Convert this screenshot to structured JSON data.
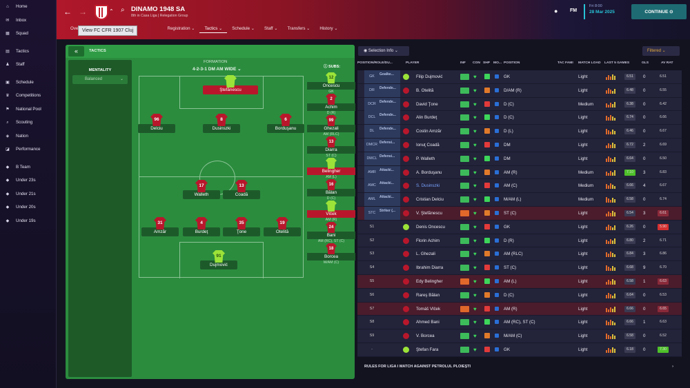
{
  "sidebar": {
    "items": [
      {
        "label": "Home",
        "icon": "home-icon"
      },
      {
        "label": "Inbox",
        "icon": "inbox-icon"
      },
      {
        "label": "Squad",
        "icon": "squad-icon"
      },
      {
        "label": "Tactics",
        "icon": "tactics-icon"
      },
      {
        "label": "Staff",
        "icon": "staff-icon"
      },
      {
        "label": "Schedule",
        "icon": "calendar-icon"
      },
      {
        "label": "Competitions",
        "icon": "trophy-icon"
      },
      {
        "label": "National Pool",
        "icon": "flag-icon"
      },
      {
        "label": "Scouting",
        "icon": "binoculars-icon"
      },
      {
        "label": "Nation",
        "icon": "nation-icon"
      },
      {
        "label": "Performance",
        "icon": "chart-icon"
      },
      {
        "label": "B Team",
        "icon": "team-icon"
      },
      {
        "label": "Under 23s",
        "icon": "team-icon"
      },
      {
        "label": "Under 21s",
        "icon": "team-icon"
      },
      {
        "label": "Under 20s",
        "icon": "team-icon"
      },
      {
        "label": "Under 19s",
        "icon": "team-icon"
      }
    ]
  },
  "header": {
    "club_name": "DINAMO 1948 SA",
    "club_sub": "8th in Casa Liga | Relegation Group",
    "tooltip": "View FC CFR 1907 Cluj",
    "tabs": [
      "Overv",
      "Registration",
      "Tactics",
      "Schedule",
      "Staff",
      "Transfers",
      "History"
    ],
    "time": "Fri 8:00",
    "date": "28 Mar 2025",
    "continue": "CONTINUE",
    "fm": "FM"
  },
  "tactics": {
    "title": "TACTICS",
    "mentality_label": "MENTALITY",
    "mentality_value": "Balanced",
    "formation_label": "FORMATION",
    "formation_value": "4-2-3-1 DM AM WIDE",
    "subs_label": "SUBS:",
    "players": [
      {
        "num": "",
        "name": "Ştefănescu",
        "red": true
      },
      {
        "num": "96",
        "name": "Delciu"
      },
      {
        "num": "8",
        "name": "Dusinszki"
      },
      {
        "num": "6",
        "name": "Borduşanu"
      },
      {
        "num": "17",
        "name": "Walleth"
      },
      {
        "num": "13",
        "name": "Coadă"
      },
      {
        "num": "31",
        "name": "Amzăr"
      },
      {
        "num": "4",
        "name": "Burdeţ"
      },
      {
        "num": "35",
        "name": "Ţone"
      },
      {
        "num": "19",
        "name": "Otelită"
      },
      {
        "num": "91",
        "name": "Dujmović"
      }
    ],
    "subs": [
      {
        "num": "12",
        "name": "Oncescu",
        "pos": "GK"
      },
      {
        "num": "2",
        "name": "Achim",
        "pos": "D (R)"
      },
      {
        "num": "99",
        "name": "Ghezali",
        "pos": "AM (RLC)"
      },
      {
        "num": "13",
        "name": "Diarra",
        "pos": "ST (C)"
      },
      {
        "num": "",
        "name": "Belingher",
        "pos": "AM (L)"
      },
      {
        "num": "16",
        "name": "Bălan",
        "pos": "D (C)"
      },
      {
        "num": "",
        "name": "Vlček",
        "pos": "AM (R)"
      },
      {
        "num": "24",
        "name": "Bani",
        "pos": "AM (RC), ST (C)"
      },
      {
        "num": "18",
        "name": "Borcea",
        "pos": "M/AM (C)"
      }
    ]
  },
  "table": {
    "selection_info": "Selection Info",
    "filtered": "Filtered",
    "headers": [
      "POSITION/ROLE/DU...",
      "PLAYER",
      "INF",
      "CON",
      "SHP",
      "MO...",
      "POSITION",
      "TAC FAMI",
      "MATCH LOAD",
      "LAST 5 GAMES",
      "GLS",
      "AV RAT"
    ],
    "rows": [
      {
        "pos": "GK",
        "role": "Goalke...",
        "name": "Filip Dujmović",
        "position": "GK",
        "load": "Light",
        "r5": "6.51",
        "gls": "0",
        "avr": "6.51"
      },
      {
        "pos": "DR",
        "role": "Defende...",
        "name": "B. Otelită",
        "position": "D/AM (R)",
        "load": "Light",
        "r5": "6.48",
        "gls": "0",
        "avr": "6.55"
      },
      {
        "pos": "DCR",
        "role": "Defende...",
        "name": "David Ţone",
        "position": "D (C)",
        "load": "Medium",
        "r5": "6.38",
        "gls": "0",
        "avr": "6.42"
      },
      {
        "pos": "DCL",
        "role": "Defende...",
        "name": "Alin Burdeţ",
        "position": "D (C)",
        "load": "Light",
        "r5": "6.74",
        "gls": "0",
        "avr": "6.66"
      },
      {
        "pos": "DL",
        "role": "Defende...",
        "name": "Costin Amzăr",
        "position": "D (L)",
        "load": "Light",
        "r5": "6.46",
        "gls": "0",
        "avr": "6.67"
      },
      {
        "pos": "DMCR",
        "role": "Defensi...",
        "name": "Ionuţ Coadă",
        "position": "DM",
        "load": "Light",
        "r5": "6.72",
        "gls": "2",
        "avr": "6.69"
      },
      {
        "pos": "DMCL",
        "role": "Defensi...",
        "name": "P. Walleth",
        "position": "DM",
        "load": "Light",
        "r5": "6.64",
        "gls": "0",
        "avr": "6.50"
      },
      {
        "pos": "AMR",
        "role": "Attacki...",
        "name": "A. Borduşanu",
        "position": "AM (R)",
        "load": "Medium",
        "r5": "7.10",
        "gls": "3",
        "avr": "6.83"
      },
      {
        "pos": "AMC",
        "role": "Attacki...",
        "name": "S. Dusinszki",
        "position": "AM (C)",
        "load": "Medium",
        "r5": "6.66",
        "gls": "4",
        "avr": "6.67"
      },
      {
        "pos": "AML",
        "role": "Attacki...",
        "name": "Cristian Delciu",
        "position": "M/AM (L)",
        "load": "Medium",
        "r5": "6.58",
        "gls": "0",
        "avr": "6.74"
      },
      {
        "pos": "STC",
        "role": "Striker (...",
        "name": "V. Ştefănescu",
        "position": "ST (C)",
        "load": "Light",
        "r5": "6.54",
        "gls": "3",
        "avr": "6.61",
        "red": true
      },
      {
        "pos": "S1",
        "role": "",
        "name": "Denis Oncescu",
        "position": "GK",
        "load": "Light",
        "r5": "6.26",
        "gls": "0",
        "avr": "5.90"
      },
      {
        "pos": "S2",
        "role": "",
        "name": "Florin Achim",
        "position": "D (R)",
        "load": "Light",
        "r5": "6.80",
        "gls": "2",
        "avr": "6.71"
      },
      {
        "pos": "S3",
        "role": "",
        "name": "L. Ghezali",
        "position": "AM (RLC)",
        "load": "Light",
        "r5": "6.84",
        "gls": "3",
        "avr": "6.86"
      },
      {
        "pos": "S4",
        "role": "",
        "name": "Ibrahim Diarra",
        "position": "ST (C)",
        "load": "Light",
        "r5": "6.68",
        "gls": "9",
        "avr": "6.70"
      },
      {
        "pos": "S5",
        "role": "",
        "name": "Edy Belingher",
        "position": "AM (L)",
        "load": "Light",
        "r5": "6.58",
        "gls": "1",
        "avr": "6.63",
        "red": true
      },
      {
        "pos": "S6",
        "role": "",
        "name": "Rareş Bălan",
        "position": "D (C)",
        "load": "Light",
        "r5": "6.64",
        "gls": "0",
        "avr": "6.53"
      },
      {
        "pos": "S7",
        "role": "",
        "name": "Tomáš Vlček",
        "position": "AM (R)",
        "load": "Light",
        "r5": "6.66",
        "gls": "0",
        "avr": "6.65",
        "red": true
      },
      {
        "pos": "S8",
        "role": "",
        "name": "Ahmed Bani",
        "position": "AM (RC), ST (C)",
        "load": "Light",
        "r5": "6.66",
        "gls": "1",
        "avr": "6.63"
      },
      {
        "pos": "S9",
        "role": "",
        "name": "V. Borcea",
        "position": "M/AM (C)",
        "load": "Light",
        "r5": "6.58",
        "gls": "0",
        "avr": "6.52"
      },
      {
        "pos": "-",
        "role": "",
        "name": "Ştefan Fara",
        "position": "GK",
        "load": "Light",
        "r5": "6.18",
        "gls": "0",
        "avr": "7.30"
      }
    ],
    "rules": "RULES FOR LIGA I MATCH AGAINST PETROLUL PLOIEŞTI"
  }
}
